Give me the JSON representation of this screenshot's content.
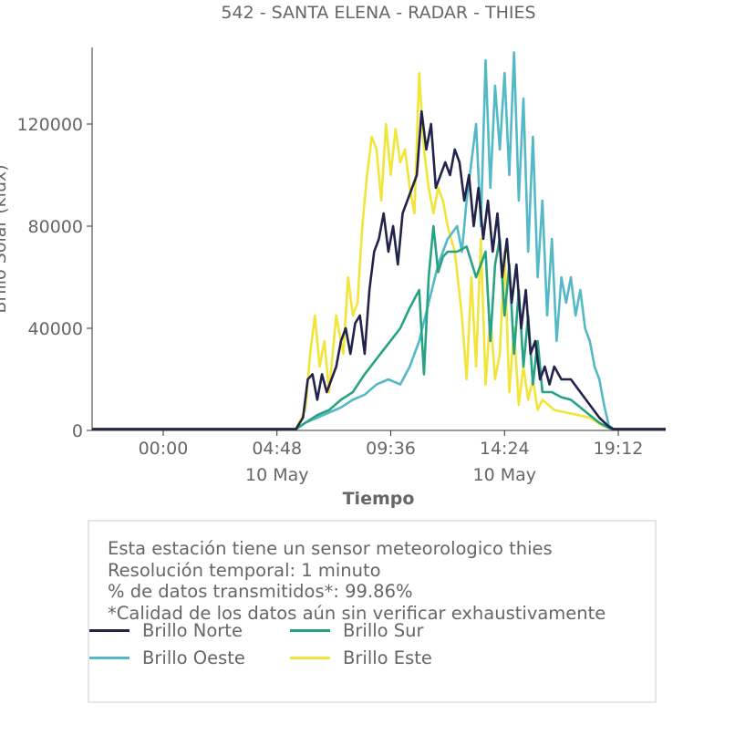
{
  "chart_data": {
    "type": "line",
    "title": "542 - SANTA ELENA - RADAR - THIES",
    "xlabel": "Tiempo",
    "ylabel": "Brillo Solar (klux)",
    "x_range_hours": [
      -3.0,
      21.2
    ],
    "ylim": [
      0,
      150000
    ],
    "y_ticks": [
      0,
      40000,
      80000,
      120000
    ],
    "y_tick_labels": [
      "0",
      "40000",
      "80000",
      "120000"
    ],
    "x_ticks": [
      {
        "hour": 0.0,
        "label": "00:00",
        "sublabel": ""
      },
      {
        "hour": 4.8,
        "label": "04:48",
        "sublabel": "10 May"
      },
      {
        "hour": 9.6,
        "label": "09:36",
        "sublabel": ""
      },
      {
        "hour": 14.4,
        "label": "14:24",
        "sublabel": "10 May"
      },
      {
        "hour": 19.2,
        "label": "19:12",
        "sublabel": ""
      }
    ],
    "series": [
      {
        "name": "Brillo Este",
        "color": "#f2e53a",
        "points": [
          [
            -3,
            500
          ],
          [
            5.6,
            500
          ],
          [
            6.0,
            8000
          ],
          [
            6.2,
            30000
          ],
          [
            6.4,
            45000
          ],
          [
            6.6,
            25000
          ],
          [
            6.8,
            35000
          ],
          [
            7.0,
            15000
          ],
          [
            7.3,
            45000
          ],
          [
            7.6,
            30000
          ],
          [
            7.8,
            60000
          ],
          [
            8.0,
            45000
          ],
          [
            8.2,
            50000
          ],
          [
            8.4,
            80000
          ],
          [
            8.6,
            100000
          ],
          [
            8.8,
            115000
          ],
          [
            9.0,
            110000
          ],
          [
            9.2,
            90000
          ],
          [
            9.4,
            120000
          ],
          [
            9.6,
            100000
          ],
          [
            9.8,
            118000
          ],
          [
            10.0,
            105000
          ],
          [
            10.2,
            110000
          ],
          [
            10.4,
            95000
          ],
          [
            10.6,
            85000
          ],
          [
            10.8,
            140000
          ],
          [
            11.0,
            110000
          ],
          [
            11.2,
            95000
          ],
          [
            11.4,
            85000
          ],
          [
            11.6,
            95000
          ],
          [
            11.8,
            90000
          ],
          [
            12.0,
            80000
          ],
          [
            12.3,
            70000
          ],
          [
            12.6,
            45000
          ],
          [
            12.8,
            20000
          ],
          [
            13.0,
            60000
          ],
          [
            13.2,
            25000
          ],
          [
            13.4,
            75000
          ],
          [
            13.6,
            18000
          ],
          [
            13.8,
            45000
          ],
          [
            14.0,
            20000
          ],
          [
            14.2,
            30000
          ],
          [
            14.4,
            70000
          ],
          [
            14.6,
            15000
          ],
          [
            14.8,
            40000
          ],
          [
            15.0,
            10000
          ],
          [
            15.2,
            25000
          ],
          [
            15.4,
            12000
          ],
          [
            15.6,
            20000
          ],
          [
            15.8,
            8000
          ],
          [
            16.0,
            12000
          ],
          [
            16.5,
            8000
          ],
          [
            17.0,
            7000
          ],
          [
            17.5,
            6000
          ],
          [
            18.0,
            5000
          ],
          [
            18.5,
            2000
          ],
          [
            19.0,
            500
          ],
          [
            21.2,
            500
          ]
        ]
      },
      {
        "name": "Brillo Oeste",
        "color": "#54b9c6",
        "points": [
          [
            -3,
            500
          ],
          [
            5.6,
            500
          ],
          [
            6.0,
            3000
          ],
          [
            6.5,
            5000
          ],
          [
            7.0,
            7000
          ],
          [
            7.5,
            9000
          ],
          [
            8.0,
            12000
          ],
          [
            8.5,
            14000
          ],
          [
            9.0,
            18000
          ],
          [
            9.5,
            20000
          ],
          [
            10.0,
            18000
          ],
          [
            10.4,
            25000
          ],
          [
            10.8,
            35000
          ],
          [
            11.2,
            50000
          ],
          [
            11.6,
            65000
          ],
          [
            12.0,
            75000
          ],
          [
            12.4,
            80000
          ],
          [
            12.6,
            70000
          ],
          [
            12.8,
            90000
          ],
          [
            13.0,
            105000
          ],
          [
            13.2,
            120000
          ],
          [
            13.4,
            80000
          ],
          [
            13.6,
            145000
          ],
          [
            13.8,
            95000
          ],
          [
            14.0,
            135000
          ],
          [
            14.2,
            110000
          ],
          [
            14.4,
            140000
          ],
          [
            14.6,
            100000
          ],
          [
            14.8,
            148000
          ],
          [
            15.0,
            90000
          ],
          [
            15.2,
            130000
          ],
          [
            15.4,
            70000
          ],
          [
            15.6,
            115000
          ],
          [
            15.8,
            60000
          ],
          [
            16.0,
            90000
          ],
          [
            16.2,
            45000
          ],
          [
            16.4,
            75000
          ],
          [
            16.6,
            35000
          ],
          [
            16.8,
            60000
          ],
          [
            17.0,
            50000
          ],
          [
            17.2,
            60000
          ],
          [
            17.4,
            45000
          ],
          [
            17.6,
            55000
          ],
          [
            17.8,
            40000
          ],
          [
            18.0,
            35000
          ],
          [
            18.2,
            25000
          ],
          [
            18.4,
            20000
          ],
          [
            18.6,
            10000
          ],
          [
            18.8,
            2000
          ],
          [
            19.0,
            500
          ],
          [
            21.2,
            500
          ]
        ]
      },
      {
        "name": "Brillo Sur",
        "color": "#27a383",
        "points": [
          [
            -3,
            500
          ],
          [
            5.6,
            500
          ],
          [
            6.0,
            3000
          ],
          [
            6.5,
            6000
          ],
          [
            7.0,
            8000
          ],
          [
            7.5,
            12000
          ],
          [
            8.0,
            15000
          ],
          [
            8.5,
            22000
          ],
          [
            9.0,
            28000
          ],
          [
            9.5,
            34000
          ],
          [
            10.0,
            40000
          ],
          [
            10.4,
            48000
          ],
          [
            10.8,
            55000
          ],
          [
            11.0,
            22000
          ],
          [
            11.2,
            60000
          ],
          [
            11.4,
            80000
          ],
          [
            11.6,
            62000
          ],
          [
            11.8,
            68000
          ],
          [
            12.0,
            70000
          ],
          [
            12.4,
            70000
          ],
          [
            12.8,
            72000
          ],
          [
            13.2,
            60000
          ],
          [
            13.6,
            70000
          ],
          [
            13.8,
            35000
          ],
          [
            14.0,
            65000
          ],
          [
            14.2,
            75000
          ],
          [
            14.4,
            45000
          ],
          [
            14.6,
            65000
          ],
          [
            14.8,
            30000
          ],
          [
            15.0,
            55000
          ],
          [
            15.2,
            25000
          ],
          [
            15.4,
            45000
          ],
          [
            15.6,
            18000
          ],
          [
            15.8,
            35000
          ],
          [
            16.0,
            15000
          ],
          [
            16.4,
            15000
          ],
          [
            16.8,
            13000
          ],
          [
            17.2,
            12000
          ],
          [
            17.6,
            9000
          ],
          [
            18.0,
            6000
          ],
          [
            18.4,
            3000
          ],
          [
            18.8,
            1000
          ],
          [
            19.0,
            500
          ],
          [
            21.2,
            500
          ]
        ]
      },
      {
        "name": "Brillo Norte",
        "color": "#22234a",
        "points": [
          [
            -3,
            500
          ],
          [
            5.6,
            500
          ],
          [
            5.9,
            5000
          ],
          [
            6.1,
            20000
          ],
          [
            6.3,
            22000
          ],
          [
            6.5,
            12000
          ],
          [
            6.7,
            22000
          ],
          [
            6.9,
            15000
          ],
          [
            7.1,
            20000
          ],
          [
            7.3,
            25000
          ],
          [
            7.5,
            35000
          ],
          [
            7.7,
            40000
          ],
          [
            7.9,
            30000
          ],
          [
            8.1,
            42000
          ],
          [
            8.3,
            45000
          ],
          [
            8.5,
            30000
          ],
          [
            8.7,
            55000
          ],
          [
            8.9,
            70000
          ],
          [
            9.1,
            75000
          ],
          [
            9.3,
            85000
          ],
          [
            9.5,
            70000
          ],
          [
            9.7,
            80000
          ],
          [
            9.9,
            65000
          ],
          [
            10.1,
            85000
          ],
          [
            10.3,
            90000
          ],
          [
            10.5,
            95000
          ],
          [
            10.7,
            100000
          ],
          [
            10.9,
            125000
          ],
          [
            11.1,
            110000
          ],
          [
            11.3,
            120000
          ],
          [
            11.5,
            95000
          ],
          [
            11.7,
            100000
          ],
          [
            11.9,
            105000
          ],
          [
            12.1,
            100000
          ],
          [
            12.3,
            110000
          ],
          [
            12.5,
            105000
          ],
          [
            12.7,
            90000
          ],
          [
            12.9,
            100000
          ],
          [
            13.1,
            80000
          ],
          [
            13.3,
            95000
          ],
          [
            13.5,
            75000
          ],
          [
            13.7,
            90000
          ],
          [
            13.9,
            70000
          ],
          [
            14.1,
            85000
          ],
          [
            14.3,
            60000
          ],
          [
            14.5,
            75000
          ],
          [
            14.7,
            50000
          ],
          [
            14.9,
            65000
          ],
          [
            15.1,
            40000
          ],
          [
            15.3,
            55000
          ],
          [
            15.5,
            30000
          ],
          [
            15.7,
            35000
          ],
          [
            15.9,
            20000
          ],
          [
            16.1,
            25000
          ],
          [
            16.3,
            18000
          ],
          [
            16.5,
            25000
          ],
          [
            16.8,
            20000
          ],
          [
            17.2,
            20000
          ],
          [
            17.6,
            15000
          ],
          [
            18.0,
            10000
          ],
          [
            18.4,
            5000
          ],
          [
            18.8,
            1500
          ],
          [
            19.0,
            500
          ],
          [
            21.2,
            500
          ]
        ]
      }
    ],
    "legend": [
      {
        "name": "Brillo Norte",
        "color": "#22234a"
      },
      {
        "name": "Brillo Sur",
        "color": "#27a383"
      },
      {
        "name": "Brillo Oeste",
        "color": "#54b9c6"
      },
      {
        "name": "Brillo Este",
        "color": "#f2e53a"
      }
    ]
  },
  "info": {
    "line1": "Esta estación tiene un sensor meteorologico thies",
    "line2": "Resolución temporal: 1 minuto",
    "line3": "% de datos transmitidos*: 99.86%",
    "line4": "*Calidad de los datos aún sin verificar exhaustivamente"
  }
}
